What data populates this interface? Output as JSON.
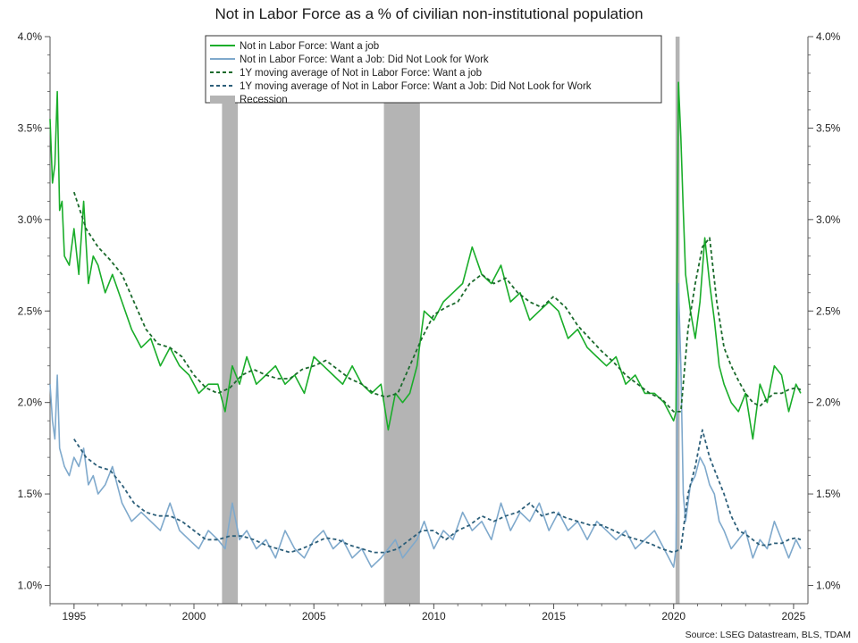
{
  "title": "Not in Labor Force as a % of civilian non-institutional population",
  "source": "Source: LSEG Datastream, BLS, TDAM",
  "colors": {
    "want_job": "#1aad2a",
    "did_not_look": "#7fa9cc",
    "ma_want_job": "#1b6a2c",
    "ma_did_not_look": "#2d5f7a",
    "recession": "#b4b4b4"
  },
  "chart_data": {
    "type": "line",
    "title": "Not in Labor Force as a % of civilian non-institutional population",
    "xlim": [
      1994.0,
      2025.6
    ],
    "ylim": [
      0.9,
      4.0
    ],
    "x_ticks": [
      1995,
      2000,
      2005,
      2010,
      2015,
      2020,
      2025
    ],
    "x_tick_labels": [
      "1995",
      "2000",
      "2005",
      "2010",
      "2015",
      "2020",
      "2025"
    ],
    "y_ticks": [
      1.0,
      1.5,
      2.0,
      2.5,
      3.0,
      3.5,
      4.0
    ],
    "y_tick_labels": [
      "1.0%",
      "1.5%",
      "2.0%",
      "2.5%",
      "3.0%",
      "3.5%",
      "4.0%"
    ],
    "legend": {
      "placement": "top-center",
      "entries": [
        "Not in Labor Force: Want a job",
        "Not in Labor Force: Want a Job: Did Not Look for Work",
        "1Y moving average of Not in Labor Force: Want a job",
        "1Y moving average of Not in Labor Force: Want a Job: Did Not Look for Work",
        "Recession"
      ]
    },
    "recessions": [
      [
        2001.17,
        2001.83
      ],
      [
        2007.92,
        2009.42
      ],
      [
        2020.08,
        2020.25
      ]
    ],
    "series": [
      {
        "name": "Not in Labor Force: Want a job",
        "style": "solid",
        "color": "#1aad2a",
        "x": [
          1994.0,
          1994.1,
          1994.2,
          1994.3,
          1994.4,
          1994.5,
          1994.6,
          1994.8,
          1995.0,
          1995.2,
          1995.4,
          1995.6,
          1995.8,
          1996.0,
          1996.3,
          1996.6,
          1997.0,
          1997.4,
          1997.8,
          1998.2,
          1998.6,
          1999.0,
          1999.4,
          1999.8,
          2000.2,
          2000.6,
          2001.0,
          2001.3,
          2001.6,
          2001.9,
          2002.2,
          2002.6,
          2003.0,
          2003.4,
          2003.8,
          2004.2,
          2004.6,
          2005.0,
          2005.4,
          2005.8,
          2006.2,
          2006.6,
          2007.0,
          2007.4,
          2007.8,
          2008.1,
          2008.4,
          2008.7,
          2009.0,
          2009.3,
          2009.6,
          2010.0,
          2010.4,
          2010.8,
          2011.2,
          2011.6,
          2012.0,
          2012.4,
          2012.8,
          2013.2,
          2013.6,
          2014.0,
          2014.4,
          2014.8,
          2015.2,
          2015.6,
          2016.0,
          2016.4,
          2016.8,
          2017.2,
          2017.6,
          2018.0,
          2018.4,
          2018.8,
          2019.2,
          2019.6,
          2020.0,
          2020.1,
          2020.2,
          2020.3,
          2020.4,
          2020.5,
          2020.7,
          2020.9,
          2021.1,
          2021.3,
          2021.5,
          2021.7,
          2021.9,
          2022.1,
          2022.4,
          2022.7,
          2023.0,
          2023.3,
          2023.6,
          2023.9,
          2024.2,
          2024.5,
          2024.8,
          2025.1,
          2025.3
        ],
        "y": [
          3.55,
          3.2,
          3.3,
          3.7,
          3.05,
          3.1,
          2.8,
          2.75,
          2.95,
          2.7,
          3.1,
          2.65,
          2.8,
          2.75,
          2.6,
          2.7,
          2.55,
          2.4,
          2.3,
          2.35,
          2.2,
          2.3,
          2.2,
          2.15,
          2.05,
          2.1,
          2.1,
          1.95,
          2.2,
          2.1,
          2.25,
          2.1,
          2.15,
          2.2,
          2.1,
          2.15,
          2.05,
          2.25,
          2.2,
          2.15,
          2.1,
          2.2,
          2.1,
          2.05,
          2.1,
          1.85,
          2.05,
          2.0,
          2.05,
          2.2,
          2.5,
          2.45,
          2.55,
          2.6,
          2.65,
          2.85,
          2.7,
          2.65,
          2.75,
          2.55,
          2.6,
          2.45,
          2.5,
          2.55,
          2.5,
          2.35,
          2.4,
          2.3,
          2.25,
          2.2,
          2.25,
          2.1,
          2.15,
          2.05,
          2.05,
          2.0,
          1.9,
          1.95,
          3.75,
          3.45,
          3.05,
          2.7,
          2.5,
          2.35,
          2.55,
          2.9,
          2.65,
          2.45,
          2.2,
          2.1,
          2.0,
          1.95,
          2.05,
          1.8,
          2.1,
          2.0,
          2.2,
          2.15,
          1.95,
          2.1,
          2.05
        ]
      },
      {
        "name": "Not in Labor Force: Want a Job: Did Not Look for Work",
        "style": "solid",
        "color": "#7fa9cc",
        "x": [
          1994.0,
          1994.1,
          1994.2,
          1994.3,
          1994.4,
          1994.5,
          1994.6,
          1994.8,
          1995.0,
          1995.2,
          1995.4,
          1995.6,
          1995.8,
          1996.0,
          1996.3,
          1996.6,
          1997.0,
          1997.4,
          1997.8,
          1998.2,
          1998.6,
          1999.0,
          1999.4,
          1999.8,
          2000.2,
          2000.6,
          2001.0,
          2001.3,
          2001.6,
          2001.9,
          2002.2,
          2002.6,
          2003.0,
          2003.4,
          2003.8,
          2004.2,
          2004.6,
          2005.0,
          2005.4,
          2005.8,
          2006.2,
          2006.6,
          2007.0,
          2007.4,
          2007.8,
          2008.1,
          2008.4,
          2008.7,
          2009.0,
          2009.3,
          2009.6,
          2010.0,
          2010.4,
          2010.8,
          2011.2,
          2011.6,
          2012.0,
          2012.4,
          2012.8,
          2013.2,
          2013.6,
          2014.0,
          2014.4,
          2014.8,
          2015.2,
          2015.6,
          2016.0,
          2016.4,
          2016.8,
          2017.2,
          2017.6,
          2018.0,
          2018.4,
          2018.8,
          2019.2,
          2019.6,
          2020.0,
          2020.1,
          2020.2,
          2020.3,
          2020.4,
          2020.5,
          2020.7,
          2020.9,
          2021.1,
          2021.3,
          2021.5,
          2021.7,
          2021.9,
          2022.1,
          2022.4,
          2022.7,
          2023.0,
          2023.3,
          2023.6,
          2023.9,
          2024.2,
          2024.5,
          2024.8,
          2025.1,
          2025.3
        ],
        "y": [
          2.1,
          1.9,
          1.8,
          2.15,
          1.75,
          1.7,
          1.65,
          1.6,
          1.7,
          1.65,
          1.75,
          1.55,
          1.6,
          1.5,
          1.55,
          1.65,
          1.45,
          1.35,
          1.4,
          1.35,
          1.3,
          1.45,
          1.3,
          1.25,
          1.2,
          1.3,
          1.25,
          1.2,
          1.45,
          1.25,
          1.3,
          1.2,
          1.25,
          1.15,
          1.3,
          1.2,
          1.15,
          1.25,
          1.3,
          1.2,
          1.25,
          1.15,
          1.2,
          1.1,
          1.15,
          1.2,
          1.25,
          1.15,
          1.2,
          1.25,
          1.35,
          1.2,
          1.3,
          1.25,
          1.4,
          1.3,
          1.35,
          1.25,
          1.45,
          1.3,
          1.4,
          1.35,
          1.45,
          1.3,
          1.4,
          1.3,
          1.35,
          1.25,
          1.35,
          1.3,
          1.25,
          1.3,
          1.2,
          1.25,
          1.3,
          1.2,
          1.1,
          1.2,
          2.65,
          2.2,
          1.5,
          1.35,
          1.55,
          1.6,
          1.7,
          1.65,
          1.55,
          1.5,
          1.35,
          1.3,
          1.2,
          1.25,
          1.3,
          1.15,
          1.25,
          1.2,
          1.35,
          1.25,
          1.15,
          1.25,
          1.2
        ]
      },
      {
        "name": "1Y moving average of Not in Labor Force: Want a job",
        "style": "dashed",
        "color": "#1b6a2c",
        "x": [
          1995.0,
          1995.5,
          1996.0,
          1996.5,
          1997.0,
          1997.5,
          1998.0,
          1998.5,
          1999.0,
          1999.5,
          2000.0,
          2000.5,
          2001.0,
          2001.5,
          2002.0,
          2002.5,
          2003.0,
          2003.5,
          2004.0,
          2004.5,
          2005.0,
          2005.5,
          2006.0,
          2006.5,
          2007.0,
          2007.5,
          2008.0,
          2008.5,
          2009.0,
          2009.5,
          2010.0,
          2010.5,
          2011.0,
          2011.5,
          2012.0,
          2012.5,
          2013.0,
          2013.5,
          2014.0,
          2014.5,
          2015.0,
          2015.5,
          2016.0,
          2016.5,
          2017.0,
          2017.5,
          2018.0,
          2018.5,
          2019.0,
          2019.5,
          2020.0,
          2020.3,
          2020.6,
          2020.9,
          2021.2,
          2021.5,
          2021.8,
          2022.1,
          2022.4,
          2022.7,
          2023.0,
          2023.3,
          2023.6,
          2023.9,
          2024.2,
          2024.5,
          2024.8,
          2025.1,
          2025.3
        ],
        "y": [
          3.15,
          2.95,
          2.85,
          2.78,
          2.7,
          2.55,
          2.4,
          2.32,
          2.3,
          2.25,
          2.15,
          2.08,
          2.05,
          2.08,
          2.15,
          2.18,
          2.15,
          2.13,
          2.13,
          2.18,
          2.2,
          2.23,
          2.18,
          2.13,
          2.1,
          2.05,
          2.03,
          2.05,
          2.2,
          2.35,
          2.48,
          2.52,
          2.55,
          2.65,
          2.7,
          2.65,
          2.68,
          2.6,
          2.55,
          2.52,
          2.58,
          2.52,
          2.42,
          2.35,
          2.28,
          2.22,
          2.15,
          2.1,
          2.05,
          2.02,
          1.95,
          1.95,
          2.4,
          2.65,
          2.85,
          2.9,
          2.55,
          2.3,
          2.2,
          2.12,
          2.05,
          2.0,
          1.98,
          2.02,
          2.05,
          2.05,
          2.07,
          2.08,
          2.07
        ]
      },
      {
        "name": "1Y moving average of Not in Labor Force: Want a Job: Did Not Look for Work",
        "style": "dashed",
        "color": "#2d5f7a",
        "x": [
          1995.0,
          1995.5,
          1996.0,
          1996.5,
          1997.0,
          1997.5,
          1998.0,
          1998.5,
          1999.0,
          1999.5,
          2000.0,
          2000.5,
          2001.0,
          2001.5,
          2002.0,
          2002.5,
          2003.0,
          2003.5,
          2004.0,
          2004.5,
          2005.0,
          2005.5,
          2006.0,
          2006.5,
          2007.0,
          2007.5,
          2008.0,
          2008.5,
          2009.0,
          2009.5,
          2010.0,
          2010.5,
          2011.0,
          2011.5,
          2012.0,
          2012.5,
          2013.0,
          2013.5,
          2014.0,
          2014.5,
          2015.0,
          2015.5,
          2016.0,
          2016.5,
          2017.0,
          2017.5,
          2018.0,
          2018.5,
          2019.0,
          2019.5,
          2020.0,
          2020.3,
          2020.6,
          2020.9,
          2021.2,
          2021.5,
          2021.8,
          2022.1,
          2022.4,
          2022.7,
          2023.0,
          2023.3,
          2023.6,
          2023.9,
          2024.2,
          2024.5,
          2024.8,
          2025.1,
          2025.3
        ],
        "y": [
          1.8,
          1.7,
          1.65,
          1.63,
          1.55,
          1.45,
          1.4,
          1.38,
          1.38,
          1.35,
          1.3,
          1.25,
          1.25,
          1.27,
          1.27,
          1.25,
          1.22,
          1.2,
          1.18,
          1.2,
          1.23,
          1.26,
          1.25,
          1.22,
          1.2,
          1.18,
          1.18,
          1.2,
          1.25,
          1.3,
          1.3,
          1.25,
          1.3,
          1.33,
          1.38,
          1.35,
          1.38,
          1.4,
          1.45,
          1.38,
          1.4,
          1.37,
          1.35,
          1.33,
          1.33,
          1.3,
          1.27,
          1.25,
          1.23,
          1.2,
          1.18,
          1.2,
          1.5,
          1.65,
          1.85,
          1.7,
          1.6,
          1.5,
          1.38,
          1.3,
          1.28,
          1.25,
          1.22,
          1.22,
          1.23,
          1.23,
          1.25,
          1.26,
          1.25
        ]
      }
    ]
  }
}
